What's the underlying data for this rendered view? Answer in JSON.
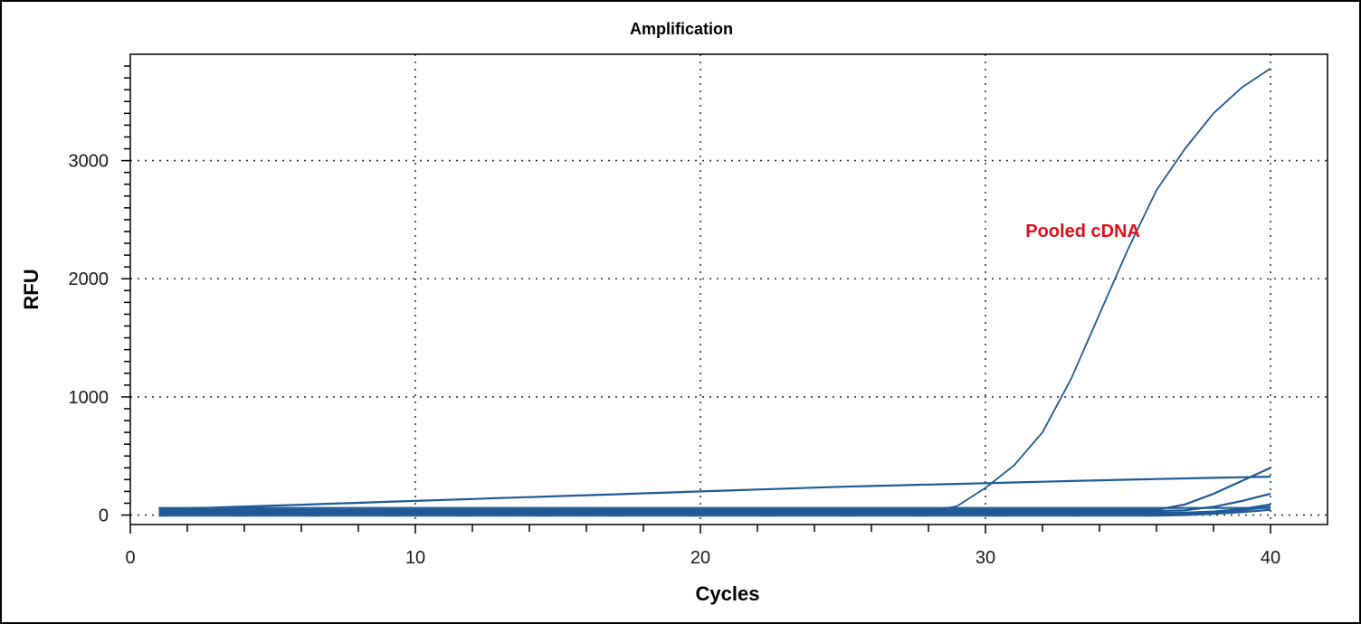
{
  "chart_data": {
    "type": "line",
    "title": "Amplification",
    "xlabel": "Cycles",
    "ylabel": "RFU",
    "xlim": [
      0,
      42
    ],
    "ylim": [
      -80,
      3900
    ],
    "x_ticks": [
      0,
      10,
      20,
      30,
      40
    ],
    "y_ticks": [
      0,
      1000,
      2000,
      3000
    ],
    "grid": "dotted",
    "legend": "none",
    "line_color": "#1f5a96",
    "annotation": {
      "text": "Pooled cDNA",
      "x": 33.5,
      "y": 2400,
      "color": "#e0101a"
    },
    "x": [
      1,
      2,
      3,
      4,
      5,
      6,
      7,
      8,
      9,
      10,
      11,
      12,
      13,
      14,
      15,
      16,
      17,
      18,
      19,
      20,
      21,
      22,
      23,
      24,
      25,
      26,
      27,
      28,
      29,
      30,
      31,
      32,
      33,
      34,
      35,
      36,
      37,
      38,
      39,
      40
    ],
    "series": [
      {
        "values": [
          30,
          30,
          30,
          30,
          30,
          30,
          30,
          30,
          30,
          30,
          30,
          30,
          30,
          30,
          30,
          30,
          30,
          30,
          30,
          30,
          30,
          30,
          30,
          30,
          30,
          30,
          30,
          30,
          75,
          230,
          420,
          700,
          1150,
          1700,
          2250,
          2750,
          3100,
          3400,
          3620,
          3780
        ]
      },
      {
        "values": [
          50,
          57,
          64,
          72,
          80,
          88,
          96,
          104,
          112,
          120,
          128,
          136,
          144,
          152,
          160,
          168,
          176,
          184,
          192,
          200,
          208,
          216,
          224,
          232,
          240,
          246,
          252,
          258,
          264,
          270,
          276,
          282,
          288,
          294,
          300,
          305,
          310,
          315,
          320,
          325
        ]
      },
      {
        "values": [
          60,
          60,
          60,
          60,
          60,
          60,
          60,
          60,
          60,
          60,
          60,
          60,
          60,
          60,
          60,
          60,
          60,
          60,
          60,
          60,
          60,
          60,
          60,
          60,
          60,
          60,
          60,
          60,
          60,
          60,
          60,
          60,
          60,
          60,
          60,
          60,
          60,
          60,
          60,
          60
        ]
      },
      {
        "values": [
          45,
          45,
          45,
          45,
          45,
          45,
          45,
          45,
          45,
          45,
          45,
          45,
          45,
          45,
          45,
          45,
          45,
          45,
          45,
          45,
          45,
          45,
          45,
          45,
          45,
          45,
          45,
          45,
          45,
          45,
          45,
          45,
          45,
          45,
          45,
          45,
          90,
          180,
          290,
          400
        ]
      },
      {
        "values": [
          35,
          35,
          35,
          35,
          35,
          35,
          35,
          35,
          35,
          35,
          35,
          35,
          35,
          35,
          35,
          35,
          35,
          35,
          35,
          35,
          35,
          35,
          35,
          35,
          35,
          35,
          35,
          35,
          35,
          35,
          35,
          35,
          35,
          35,
          35,
          35,
          40,
          70,
          120,
          180
        ]
      },
      {
        "values": [
          20,
          20,
          20,
          20,
          20,
          20,
          20,
          20,
          20,
          20,
          20,
          20,
          20,
          20,
          20,
          20,
          20,
          20,
          20,
          20,
          20,
          20,
          20,
          20,
          20,
          20,
          20,
          20,
          20,
          20,
          20,
          20,
          20,
          20,
          20,
          20,
          20,
          30,
          50,
          90
        ]
      },
      {
        "values": [
          10,
          10,
          10,
          10,
          10,
          10,
          10,
          10,
          10,
          10,
          10,
          10,
          10,
          10,
          10,
          10,
          10,
          10,
          10,
          10,
          10,
          10,
          10,
          10,
          10,
          10,
          10,
          10,
          10,
          10,
          10,
          10,
          10,
          10,
          10,
          10,
          15,
          25,
          40,
          70
        ]
      },
      {
        "values": [
          -5,
          -5,
          -5,
          -5,
          -5,
          -5,
          -5,
          -5,
          -5,
          -5,
          -5,
          -5,
          -5,
          -5,
          -5,
          -5,
          -5,
          -5,
          -5,
          -5,
          -5,
          -5,
          -5,
          -5,
          -5,
          -5,
          -5,
          -5,
          -5,
          -5,
          -5,
          -5,
          -5,
          -5,
          -5,
          -5,
          0,
          10,
          25,
          45
        ]
      }
    ]
  }
}
